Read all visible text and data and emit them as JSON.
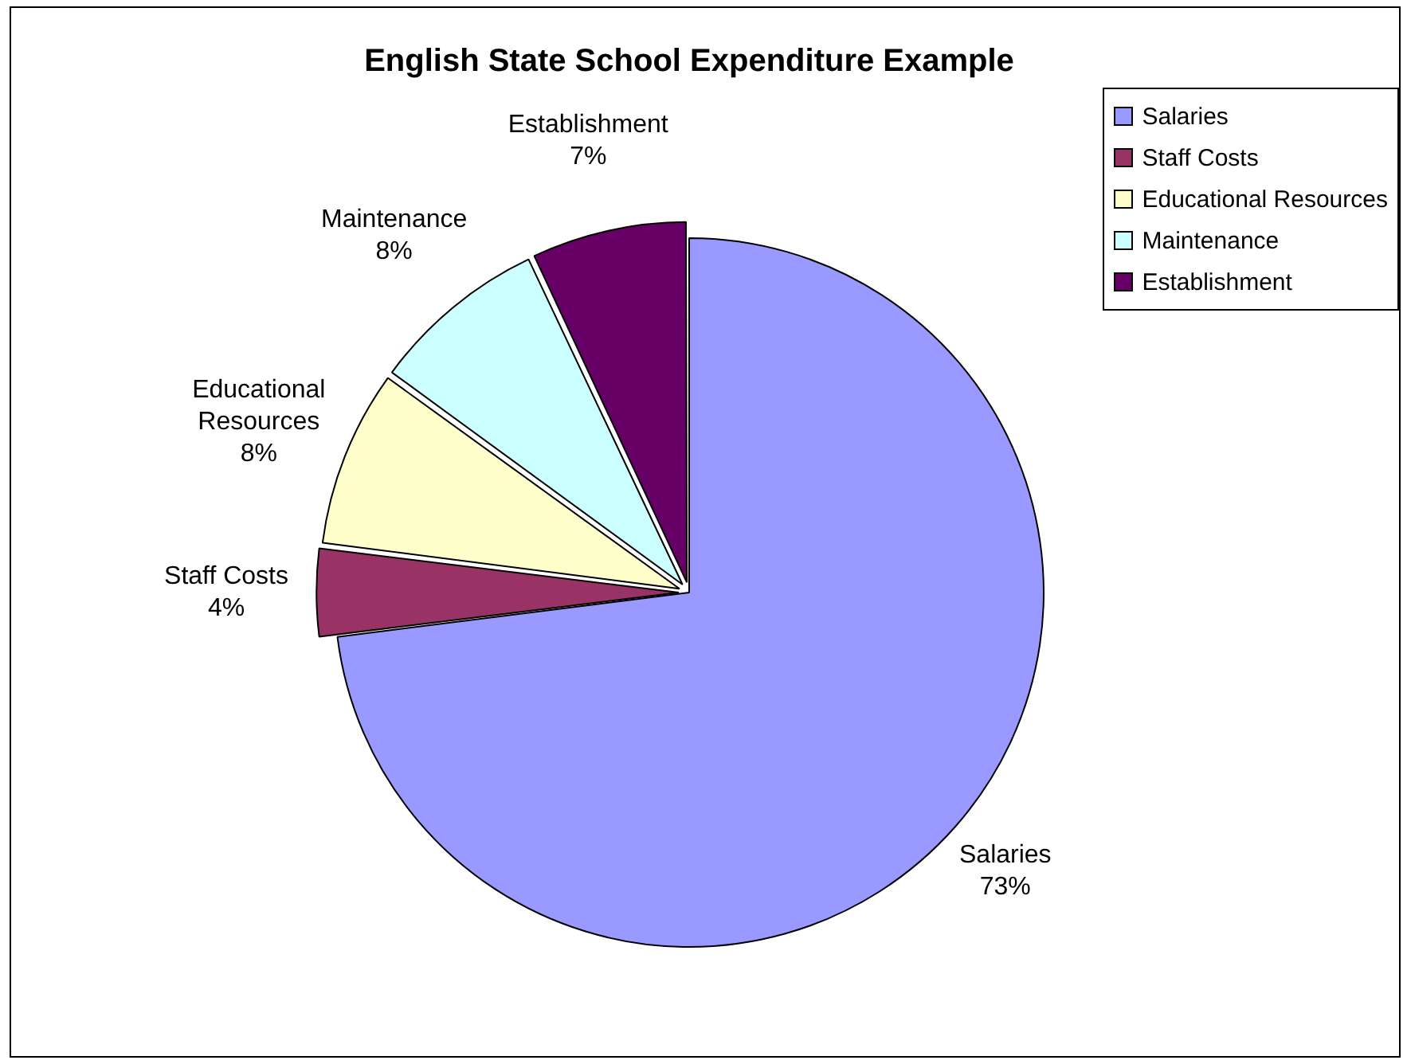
{
  "chart_data": {
    "type": "pie",
    "title": "English State School Expenditure Example",
    "categories": [
      "Salaries",
      "Staff Costs",
      "Educational Resources",
      "Maintenance",
      "Establishment"
    ],
    "values": [
      73,
      4,
      8,
      8,
      7
    ],
    "value_labels": [
      "73%",
      "4%",
      "8%",
      "8%",
      "7%"
    ],
    "colors": [
      "#9999ff",
      "#993366",
      "#ffffcc",
      "#ccffff",
      "#660066"
    ],
    "legend": "top right"
  }
}
